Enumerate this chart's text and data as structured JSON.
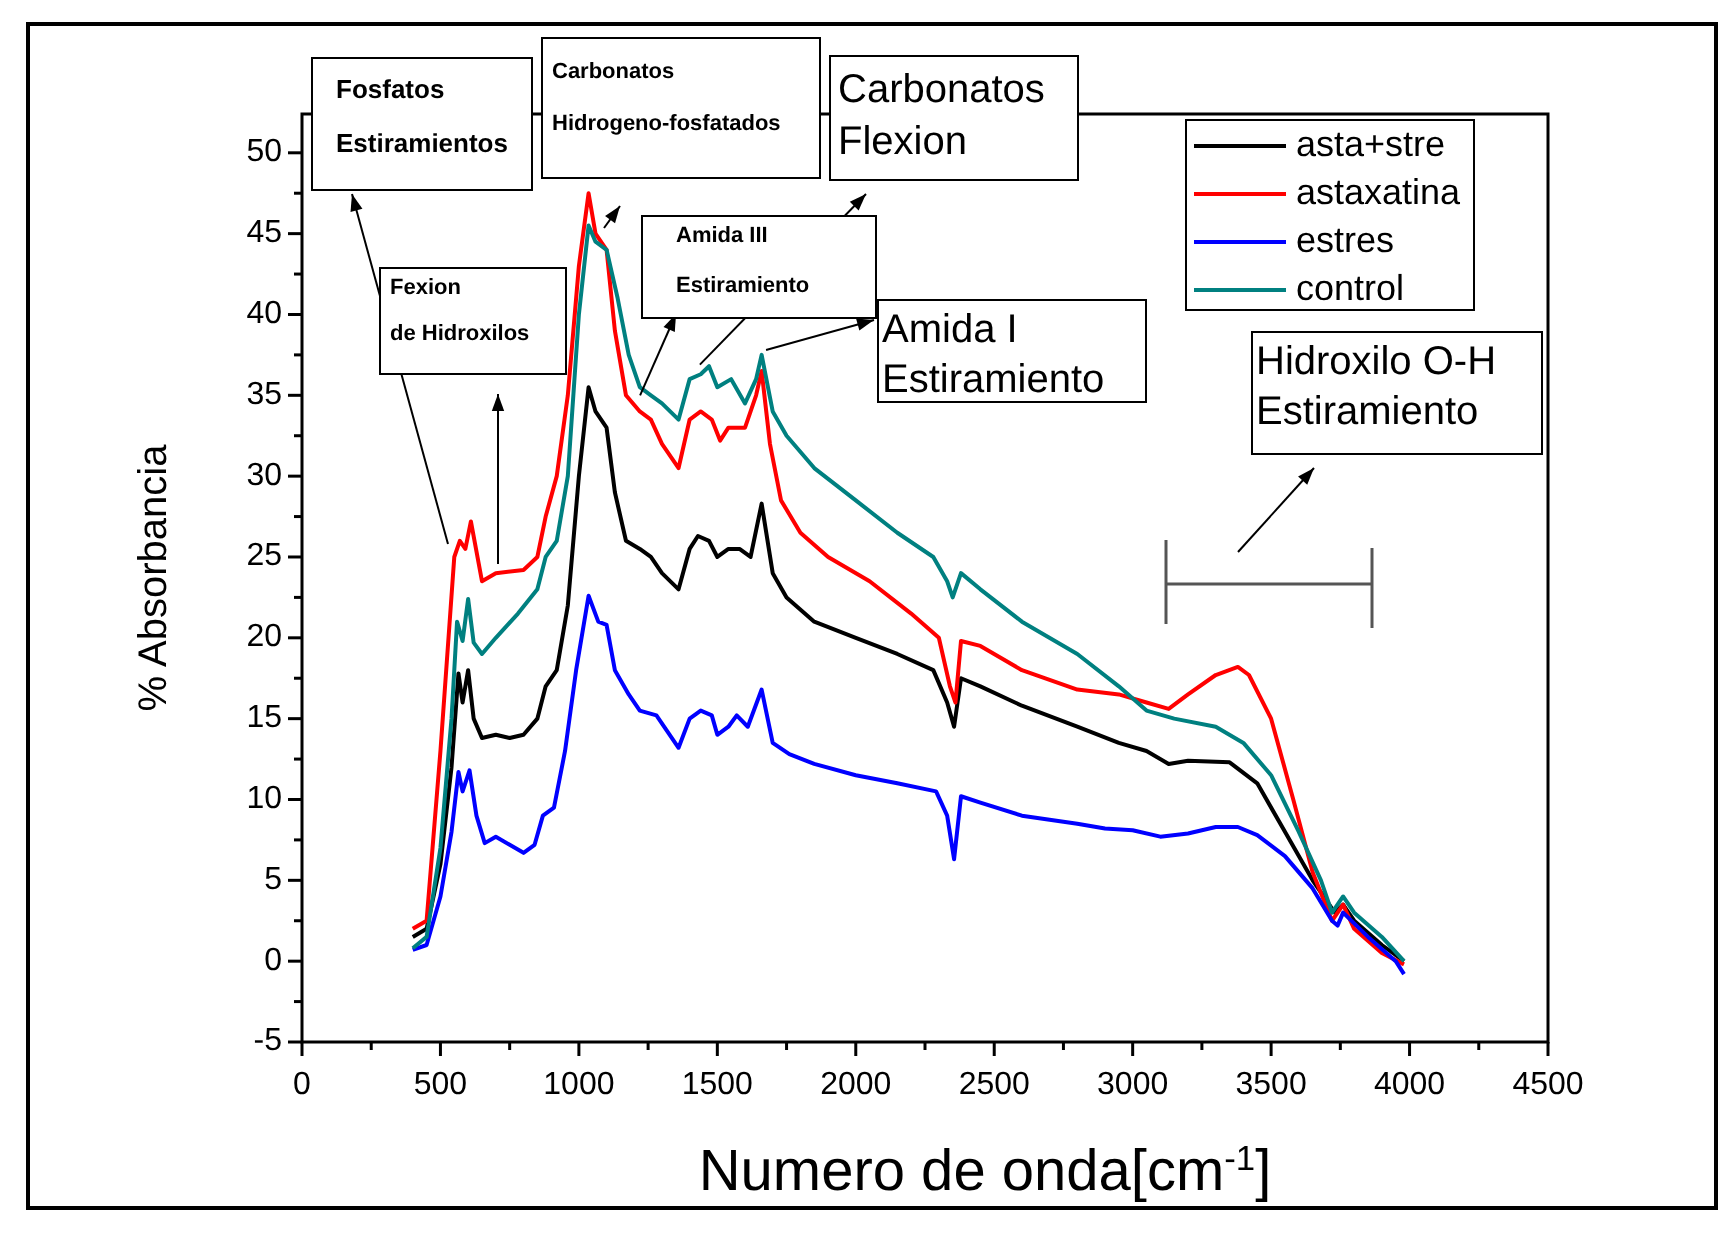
{
  "chart_data": {
    "type": "line",
    "xlabel": "Numero de onda[cm$^{-1}$]",
    "ylabel": "% Absorbancia",
    "xlim": [
      0,
      4500
    ],
    "ylim": [
      -5,
      52.4
    ],
    "xticks": [
      0,
      {
        "value": 250,
        "label": null
      },
      500,
      {
        "value": 750,
        "label": null
      },
      1000,
      {
        "value": 1250,
        "label": null
      },
      1500,
      {
        "value": 1750,
        "label": null
      },
      2000,
      {
        "value": 2250,
        "label": null
      },
      2500,
      {
        "value": 2750,
        "label": null
      },
      3000,
      {
        "value": 3250,
        "label": null
      },
      3500,
      {
        "value": 3750,
        "label": null
      },
      4000,
      {
        "value": 4250,
        "label": null
      },
      4500
    ],
    "yticks": [
      -5,
      {
        "value": -2.5,
        "label": null
      },
      0,
      {
        "value": 2.5,
        "label": null
      },
      5,
      {
        "value": 7.5,
        "label": null
      },
      10,
      {
        "value": 12.5,
        "label": null
      },
      15,
      {
        "value": 17.5,
        "label": null
      },
      20,
      {
        "value": 22.5,
        "label": null
      },
      25,
      {
        "value": 27.5,
        "label": null
      },
      30,
      {
        "value": 32.5,
        "label": null
      },
      35,
      {
        "value": 37.5,
        "label": null
      },
      40,
      {
        "value": 42.5,
        "label": null
      },
      45,
      {
        "value": 47.5,
        "label": null
      },
      50
    ],
    "grid": false,
    "legend": "top right",
    "marker": "none",
    "line_style": "solid",
    "series": [
      {
        "name": "asta+stre",
        "color": "#000000",
        "x": [
          400,
          450,
          500,
          540,
          565,
          580,
          600,
          620,
          650,
          700,
          750,
          800,
          850,
          880,
          920,
          960,
          1000,
          1035,
          1060,
          1100,
          1130,
          1170,
          1220,
          1260,
          1300,
          1360,
          1400,
          1430,
          1470,
          1500,
          1540,
          1580,
          1620,
          1660,
          1700,
          1750,
          1850,
          2000,
          2150,
          2280,
          2330,
          2355,
          2380,
          2450,
          2600,
          2800,
          2950,
          3050,
          3130,
          3200,
          3350,
          3450,
          3550,
          3650,
          3730,
          3760,
          3800,
          3900,
          3980
        ],
        "values": [
          1.5,
          2,
          6,
          12,
          17.8,
          16,
          18,
          15,
          13.8,
          14,
          13.8,
          14,
          15,
          17,
          18,
          22,
          30,
          35.5,
          34,
          33,
          29,
          26,
          25.5,
          25,
          24,
          23,
          25.5,
          26.3,
          26,
          25,
          25.5,
          25.5,
          25,
          28.3,
          24,
          22.5,
          21,
          20,
          19,
          18,
          16,
          14.5,
          17.5,
          17,
          15.8,
          14.5,
          13.5,
          13,
          12.2,
          12.4,
          12.3,
          11,
          8,
          5,
          3,
          3.5,
          2.5,
          1,
          0
        ]
      },
      {
        "name": "astaxatina",
        "color": "#ff0000",
        "x": [
          400,
          450,
          500,
          550,
          570,
          590,
          610,
          650,
          700,
          800,
          850,
          880,
          920,
          960,
          1000,
          1035,
          1060,
          1100,
          1130,
          1170,
          1220,
          1260,
          1300,
          1360,
          1400,
          1440,
          1480,
          1510,
          1540,
          1600,
          1640,
          1660,
          1690,
          1730,
          1800,
          1900,
          2050,
          2200,
          2300,
          2340,
          2360,
          2380,
          2450,
          2600,
          2800,
          2950,
          3050,
          3130,
          3200,
          3300,
          3380,
          3420,
          3500,
          3580,
          3650,
          3720,
          3760,
          3800,
          3900,
          3980
        ],
        "values": [
          2,
          2.5,
          13,
          25,
          26,
          25.5,
          27.2,
          23.5,
          24,
          24.2,
          25,
          27.5,
          30,
          35,
          43,
          47.5,
          45,
          44,
          39,
          35,
          34,
          33.5,
          32,
          30.5,
          33.5,
          34,
          33.5,
          32.2,
          33,
          33,
          35,
          36.5,
          32,
          28.5,
          26.5,
          25,
          23.5,
          21.5,
          20,
          17,
          16,
          19.8,
          19.5,
          18,
          16.8,
          16.5,
          16,
          15.6,
          16.5,
          17.7,
          18.2,
          17.7,
          15,
          10,
          5.5,
          2.5,
          3.5,
          2,
          0.5,
          -0.2
        ]
      },
      {
        "name": "estres",
        "color": "#0000ff",
        "x": [
          400,
          450,
          500,
          540,
          565,
          580,
          605,
          630,
          660,
          700,
          750,
          800,
          840,
          870,
          910,
          950,
          990,
          1035,
          1070,
          1100,
          1130,
          1180,
          1220,
          1280,
          1360,
          1400,
          1440,
          1480,
          1500,
          1540,
          1570,
          1610,
          1660,
          1700,
          1760,
          1850,
          2000,
          2150,
          2290,
          2330,
          2355,
          2380,
          2450,
          2600,
          2800,
          2900,
          3000,
          3100,
          3200,
          3300,
          3380,
          3450,
          3550,
          3650,
          3720,
          3740,
          3760,
          3850,
          3950,
          3980
        ],
        "values": [
          0.7,
          1,
          4,
          8,
          11.7,
          10.5,
          11.8,
          9,
          7.3,
          7.7,
          7.2,
          6.7,
          7.2,
          9,
          9.5,
          13,
          18,
          22.6,
          21,
          20.8,
          18,
          16.5,
          15.5,
          15.2,
          13.2,
          15,
          15.5,
          15.2,
          14,
          14.5,
          15.2,
          14.5,
          16.8,
          13.5,
          12.8,
          12.2,
          11.5,
          11,
          10.5,
          9,
          6.3,
          10.2,
          9.8,
          9,
          8.5,
          8.2,
          8.1,
          7.7,
          7.9,
          8.3,
          8.3,
          7.8,
          6.5,
          4.5,
          2.5,
          2.2,
          3,
          1.5,
          0,
          -0.8
        ]
      },
      {
        "name": "control",
        "color": "#008080",
        "x": [
          400,
          450,
          500,
          540,
          560,
          580,
          600,
          620,
          650,
          700,
          780,
          850,
          880,
          920,
          960,
          1000,
          1035,
          1060,
          1100,
          1140,
          1180,
          1220,
          1260,
          1300,
          1360,
          1400,
          1440,
          1470,
          1500,
          1550,
          1600,
          1640,
          1660,
          1700,
          1750,
          1850,
          2000,
          2150,
          2280,
          2330,
          2350,
          2380,
          2450,
          2600,
          2800,
          2950,
          3050,
          3150,
          3300,
          3400,
          3500,
          3600,
          3680,
          3720,
          3760,
          3800,
          3900,
          3980
        ],
        "values": [
          0.8,
          1.5,
          7,
          15,
          21,
          19.8,
          22.4,
          19.7,
          19,
          20,
          21.5,
          23,
          25,
          26,
          30,
          40,
          45.5,
          44.5,
          44,
          41,
          37.5,
          35.5,
          35,
          34.5,
          33.5,
          36,
          36.3,
          36.8,
          35.5,
          36,
          34.5,
          36,
          37.5,
          34,
          32.5,
          30.5,
          28.5,
          26.5,
          25,
          23.5,
          22.5,
          24,
          23,
          21,
          19,
          17,
          15.5,
          15,
          14.5,
          13.5,
          11.5,
          8,
          5,
          3,
          4,
          3,
          1.5,
          0
        ]
      }
    ],
    "annotations": [
      "Fosfatos\nEstiramientos",
      "Carbonatos\nHidrogeno-fosfatados",
      {
        "text": "Carbonatos\nFlexion",
        "x": 1437,
        "y": 36.9
      },
      "Fexion\nde Hidroxilos",
      {
        "text": "Amida III\nEstiramiento",
        "x": 1221,
        "y": 35
      },
      {
        "text": "Amida I\nEstiramiento",
        "x": 1676,
        "y": 37.8
      },
      "Hidroxilo O-H\nEstiramiento"
    ]
  }
}
